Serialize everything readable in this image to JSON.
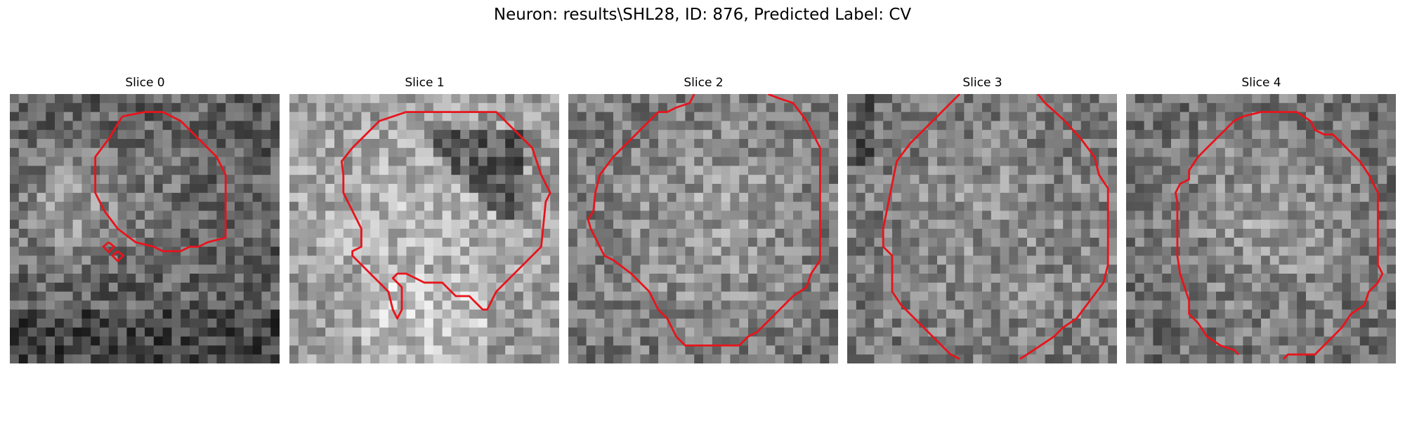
{
  "figure": {
    "title": "Neuron: results\\SHL28, ID: 876, Predicted Label: CV"
  },
  "slices": [
    {
      "label": "Slice 0"
    },
    {
      "label": "Slice 1"
    },
    {
      "label": "Slice 2"
    },
    {
      "label": "Slice 3"
    },
    {
      "label": "Slice 4"
    }
  ],
  "colors": {
    "contour": "#e8141c",
    "background": "#ffffff"
  }
}
